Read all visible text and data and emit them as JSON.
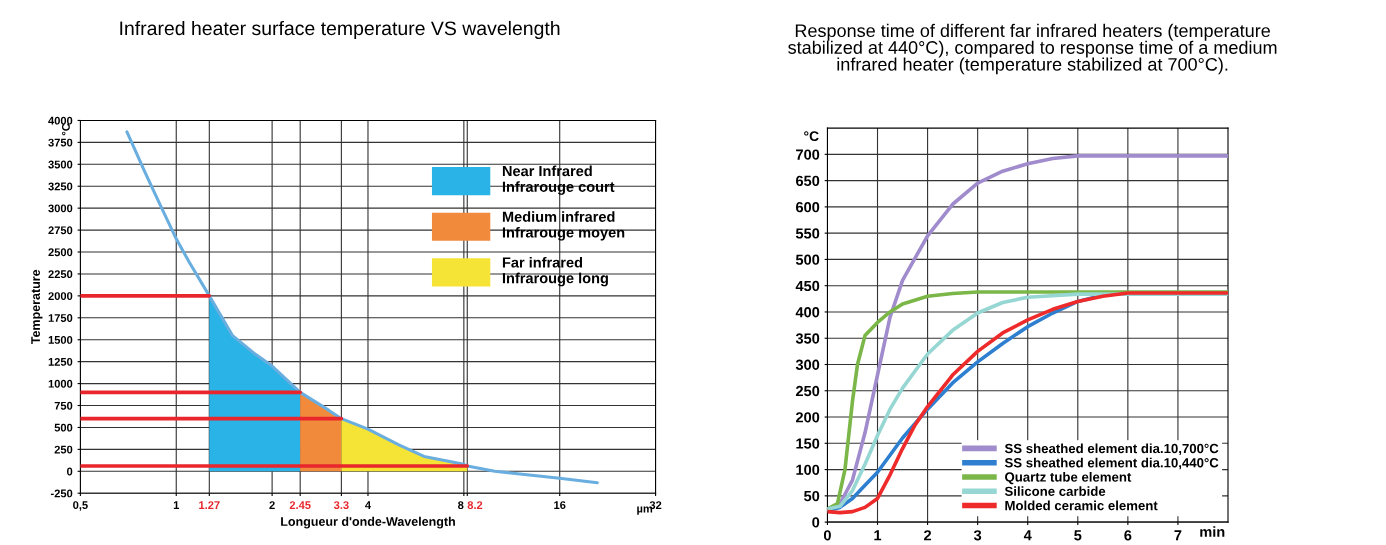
{
  "chart_data": [
    {
      "type": "line",
      "title": "Infrared heater surface temperature VS wavelength",
      "xlabel": "Longueur d'onde-Wavelength",
      "ylabel": "Temperature",
      "log": "x",
      "xlim": [
        0.5,
        32
      ],
      "xticks": [
        {
          "value": 0.5,
          "label": "0,5"
        },
        1,
        1.27,
        2,
        2.45,
        3.3,
        4,
        8,
        8.2,
        16,
        32
      ],
      "ylim": [
        -250,
        4000
      ],
      "yticks": [
        -250,
        0,
        250,
        500,
        750,
        1000,
        1250,
        1500,
        1750,
        2000,
        2250,
        2500,
        2750,
        3000,
        3250,
        3500,
        3750,
        4000
      ],
      "grid": true,
      "legend": "top right",
      "annotations": [
        "°C",
        "µm"
      ],
      "series": [
        {
          "name": "Near Infrared\nInfrarouge court",
          "type": "area",
          "color": "#29b3e6",
          "x": [
            1.27,
            1.5,
            1.75,
            2,
            2.45
          ],
          "values": [
            2000,
            1550,
            1350,
            1200,
            900
          ]
        },
        {
          "name": "Medium infrared\nInfrarouge moyen",
          "type": "area",
          "color": "#f28a3c",
          "x": [
            2.45,
            3,
            3.3
          ],
          "values": [
            900,
            700,
            600
          ]
        },
        {
          "name": "Far infrared\nInfrarouge long",
          "type": "area",
          "color": "#f5e435",
          "x": [
            3.3,
            4,
            5,
            6,
            8,
            8.2
          ],
          "values": [
            600,
            480,
            300,
            170,
            80,
            60
          ]
        },
        {
          "type": "line",
          "color": "#6aaee0",
          "x": [
            0.7,
            0.8,
            0.9,
            1,
            1.1,
            1.27,
            1.5,
            1.75,
            2,
            2.45,
            3,
            3.3,
            4,
            5,
            6,
            8,
            8.2,
            10,
            12,
            16,
            21
          ],
          "values": [
            3870,
            3400,
            3000,
            2650,
            2380,
            2000,
            1550,
            1350,
            1200,
            900,
            700,
            600,
            480,
            300,
            170,
            80,
            60,
            0,
            -30,
            -80,
            -130
          ]
        },
        {
          "type": "line",
          "color": "#e8262c",
          "x": [
            0.5,
            1.27
          ],
          "values": [
            2000,
            2000
          ]
        },
        {
          "type": "line",
          "color": "#e8262c",
          "x": [
            0.5,
            2.45
          ],
          "values": [
            900,
            900
          ]
        },
        {
          "type": "line",
          "color": "#e8262c",
          "x": [
            0.5,
            3.3
          ],
          "values": [
            600,
            600
          ]
        },
        {
          "type": "line",
          "color": "#e8262c",
          "x": [
            0.5,
            8.2
          ],
          "values": [
            60,
            60
          ]
        }
      ]
    },
    {
      "type": "line",
      "title": "Response time of different far infrared heaters (temperature\nstabilized at 440°C), compared to response time of a medium\ninfrared heater (temperature stabilized at 700°C).",
      "xlim": [
        0,
        8
      ],
      "xticks": [
        0,
        1,
        2,
        3,
        4,
        5,
        6,
        7
      ],
      "ylim": [
        0,
        750
      ],
      "yticks": [
        0,
        50,
        100,
        150,
        200,
        250,
        300,
        350,
        400,
        450,
        500,
        550,
        600,
        650,
        700
      ],
      "grid": true,
      "legend": "bottom right",
      "annotations": [
        "°C",
        "min"
      ],
      "series": [
        {
          "name": "SS sheathed element dia.10,700°C",
          "color": "#a08ccc",
          "x": [
            0,
            0.25,
            0.5,
            0.75,
            1,
            1.25,
            1.5,
            2,
            2.5,
            3,
            3.5,
            4,
            4.5,
            5,
            6,
            8
          ],
          "values": [
            25,
            35,
            80,
            170,
            280,
            390,
            460,
            545,
            605,
            645,
            668,
            682,
            692,
            697,
            697,
            697
          ]
        },
        {
          "name": "SS sheathed element dia.10,440°C",
          "color": "#2f7fd0",
          "x": [
            0,
            0.25,
            0.5,
            0.75,
            1,
            1.5,
            2,
            2.5,
            3,
            3.5,
            4,
            4.5,
            5,
            5.5,
            6,
            8
          ],
          "values": [
            22,
            28,
            45,
            70,
            95,
            160,
            215,
            265,
            305,
            340,
            372,
            398,
            420,
            432,
            436,
            436
          ]
        },
        {
          "name": "Quartz tube element",
          "color": "#7ab648",
          "x": [
            0,
            0.2,
            0.35,
            0.5,
            0.6,
            0.75,
            1,
            1.25,
            1.5,
            2,
            2.5,
            3,
            8
          ],
          "values": [
            25,
            35,
            100,
            230,
            300,
            355,
            380,
            400,
            415,
            430,
            435,
            438,
            438
          ]
        },
        {
          "name": "Silicone carbide",
          "color": "#97d7d3",
          "x": [
            0,
            0.25,
            0.5,
            0.75,
            1,
            1.25,
            1.5,
            2,
            2.5,
            3,
            3.5,
            4,
            5,
            6,
            8
          ],
          "values": [
            25,
            30,
            60,
            110,
            165,
            215,
            255,
            320,
            365,
            398,
            418,
            428,
            434,
            434,
            434
          ]
        },
        {
          "name": "Molded ceramic element",
          "color": "#ee2a2a",
          "x": [
            0,
            0.25,
            0.5,
            0.75,
            1,
            1.25,
            1.5,
            1.75,
            2,
            2.5,
            3,
            3.5,
            4,
            4.5,
            5,
            5.5,
            6,
            8
          ],
          "values": [
            20,
            18,
            20,
            28,
            45,
            90,
            140,
            185,
            220,
            280,
            325,
            360,
            385,
            405,
            420,
            430,
            436,
            436
          ]
        }
      ]
    }
  ]
}
